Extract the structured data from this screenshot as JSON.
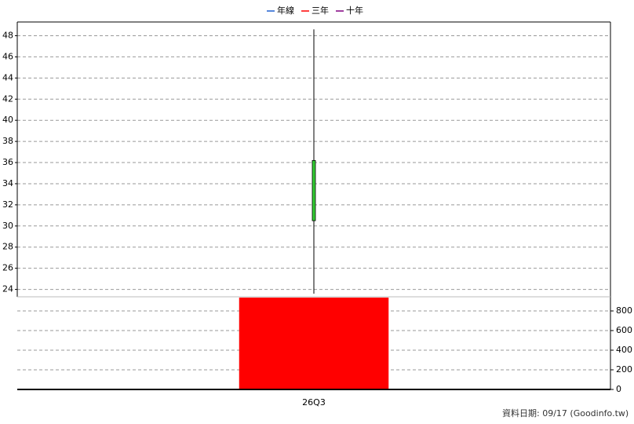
{
  "chart_data": {
    "type": "candlestick",
    "legend": [
      {
        "name": "年線",
        "color": "#1f5fd1"
      },
      {
        "name": "三年",
        "color": "#ff0000"
      },
      {
        "name": "十年",
        "color": "#800080"
      }
    ],
    "categories": [
      "26Q3"
    ],
    "open": [
      36.2
    ],
    "high": [
      48.6
    ],
    "low": [
      23.6
    ],
    "close": [
      30.5
    ],
    "candle_color": "#33cc33",
    "ylim": [
      23.3,
      49.3
    ],
    "yticks": [
      24,
      26,
      28,
      30,
      32,
      34,
      36,
      38,
      40,
      42,
      44,
      46,
      48
    ],
    "volume": {
      "values": [
        936
      ],
      "color": "#ff0000",
      "y2lim": [
        0,
        944
      ],
      "y2ticks": [
        0,
        200,
        400,
        600,
        800
      ]
    },
    "grid": true,
    "footer": "資料日期: 09/17  (Goodinfo.tw)"
  }
}
